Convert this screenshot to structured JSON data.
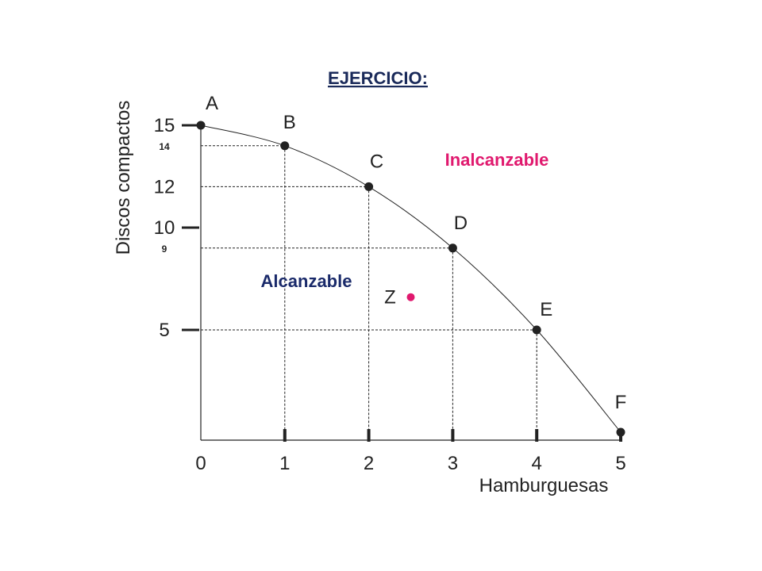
{
  "chart_data": {
    "type": "line",
    "title": "EJERCICIO:",
    "xlabel": "Hamburguesas",
    "ylabel": "Discos compactos",
    "xlim": [
      0,
      5
    ],
    "ylim": [
      0,
      15
    ],
    "x_ticks": [
      "0",
      "1",
      "2",
      "3",
      "4",
      "5"
    ],
    "y_ticks_major": [
      "15",
      "12",
      "10",
      "5"
    ],
    "y_ticks_minor": [
      "14",
      "9"
    ],
    "points": [
      {
        "label": "A",
        "x": 0,
        "y": 15
      },
      {
        "label": "B",
        "x": 1,
        "y": 14
      },
      {
        "label": "C",
        "x": 2,
        "y": 12
      },
      {
        "label": "D",
        "x": 3,
        "y": 9
      },
      {
        "label": "E",
        "x": 4,
        "y": 5
      },
      {
        "label": "F",
        "x": 5,
        "y": 0
      }
    ],
    "extra_point": {
      "label": "Z",
      "x": 2.5,
      "y": 6.6
    },
    "regions": {
      "attainable": "Alcanzable",
      "unattainable": "Inalcanzable"
    },
    "grid": false,
    "colors": {
      "title": "#1a2a5a",
      "attainable": "#1a2a6a",
      "unattainable": "#e0196e",
      "point_z": "#e0196e",
      "ink": "#222222"
    }
  }
}
